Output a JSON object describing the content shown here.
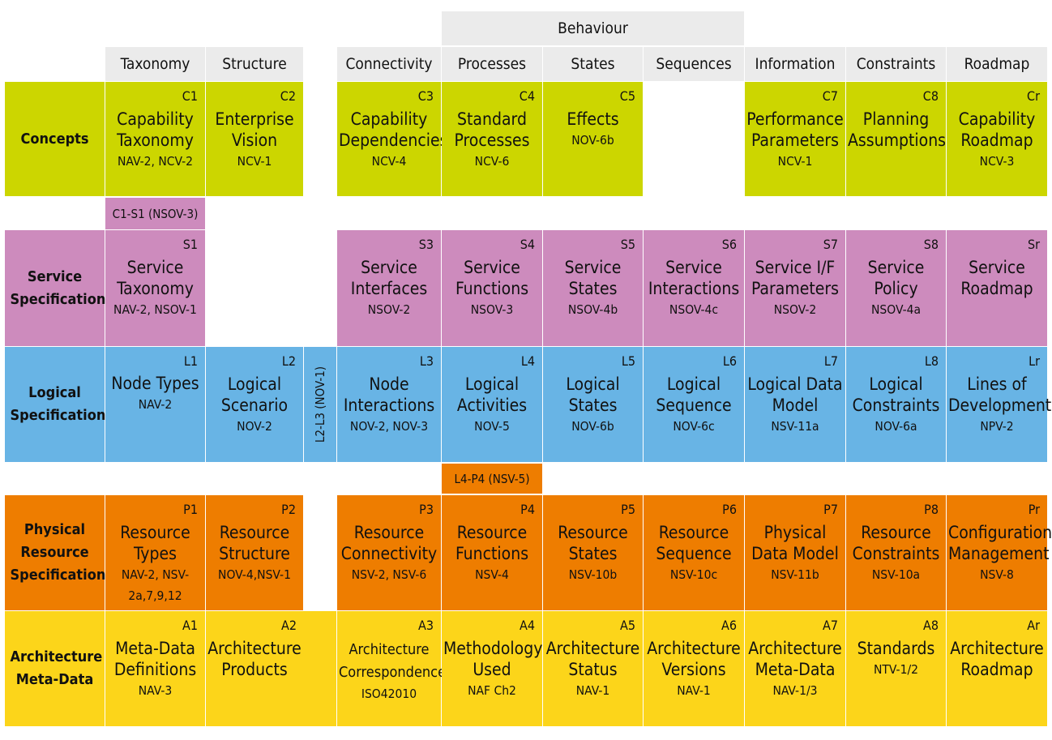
{
  "behaviour_label": "Behaviour",
  "columns": [
    "Taxonomy",
    "Structure",
    "Connectivity",
    "Processes",
    "States",
    "Sequences",
    "Information",
    "Constraints",
    "Roadmap"
  ],
  "rows": [
    {
      "label": "Concepts",
      "color": "#ccd600"
    },
    {
      "label": "Service Specifications",
      "color": "#cd8bbd"
    },
    {
      "label": "Logical Specifications",
      "color": "#68b4e5"
    },
    {
      "label": "Physical Resource Specifications",
      "color": "#ee7d00"
    },
    {
      "label": "Architecture Meta-Data",
      "color": "#fcd51a"
    }
  ],
  "links": {
    "c1_s1": "C1-S1 (NSOV-3)",
    "l2_l3": "L2-L3 (NOV-1)",
    "l4_p4": "L4-P4 (NSV-5)"
  },
  "concepts": {
    "c1": {
      "code": "C1",
      "name": "Capability Taxonomy",
      "ref": "NAV-2, NCV-2"
    },
    "c2": {
      "code": "C2",
      "name": "Enterprise Vision",
      "ref": "NCV-1"
    },
    "c3": {
      "code": "C3",
      "name": "Capability Dependencies",
      "ref": "NCV-4"
    },
    "c4": {
      "code": "C4",
      "name": "Standard Processes",
      "ref": "NCV-6"
    },
    "c5": {
      "code": "C5",
      "name": "Effects",
      "ref": "NOV-6b"
    },
    "c7": {
      "code": "C7",
      "name": "Performance Parameters",
      "ref": "NCV-1"
    },
    "c8": {
      "code": "C8",
      "name": "Planning Assumptions",
      "ref": ""
    },
    "cr": {
      "code": "Cr",
      "name": "Capability Roadmap",
      "ref": "NCV-3"
    }
  },
  "service": {
    "s1": {
      "code": "S1",
      "name": "Service Taxonomy",
      "ref": "NAV-2, NSOV-1"
    },
    "s3": {
      "code": "S3",
      "name": "Service Interfaces",
      "ref": "NSOV-2"
    },
    "s4": {
      "code": "S4",
      "name": "Service Functions",
      "ref": "NSOV-3"
    },
    "s5": {
      "code": "S5",
      "name": "Service States",
      "ref": "NSOV-4b"
    },
    "s6": {
      "code": "S6",
      "name": "Service Interactions",
      "ref": "NSOV-4c"
    },
    "s7": {
      "code": "S7",
      "name": "Service I/F Parameters",
      "ref": "NSOV-2"
    },
    "s8": {
      "code": "S8",
      "name": "Service Policy",
      "ref": "NSOV-4a"
    },
    "sr": {
      "code": "Sr",
      "name": "Service Roadmap",
      "ref": ""
    }
  },
  "logical": {
    "l1": {
      "code": "L1",
      "name": "Node Types",
      "ref": "NAV-2"
    },
    "l2": {
      "code": "L2",
      "name": "Logical Scenario",
      "ref": "NOV-2"
    },
    "l3": {
      "code": "L3",
      "name": "Node Interactions",
      "ref": "NOV-2, NOV-3"
    },
    "l4": {
      "code": "L4",
      "name": "Logical Activities",
      "ref": "NOV-5"
    },
    "l5": {
      "code": "L5",
      "name": "Logical States",
      "ref": "NOV-6b"
    },
    "l6": {
      "code": "L6",
      "name": "Logical Sequence",
      "ref": "NOV-6c"
    },
    "l7": {
      "code": "L7",
      "name": "Logical Data Model",
      "ref": "NSV-11a"
    },
    "l8": {
      "code": "L8",
      "name": "Logical Constraints",
      "ref": "NOV-6a"
    },
    "lr": {
      "code": "Lr",
      "name": "Lines of Development",
      "ref": "NPV-2"
    }
  },
  "physical": {
    "p1": {
      "code": "P1",
      "name": "Resource Types",
      "ref": "NAV-2, NSV-2a,7,9,12"
    },
    "p2": {
      "code": "P2",
      "name": "Resource Structure",
      "ref": "NOV-4,NSV-1"
    },
    "p3": {
      "code": "P3",
      "name": "Resource Connectivity",
      "ref": "NSV-2, NSV-6"
    },
    "p4": {
      "code": "P4",
      "name": "Resource Functions",
      "ref": "NSV-4"
    },
    "p5": {
      "code": "P5",
      "name": "Resource States",
      "ref": "NSV-10b"
    },
    "p6": {
      "code": "P6",
      "name": "Resource Sequence",
      "ref": "NSV-10c"
    },
    "p7": {
      "code": "P7",
      "name": "Physical Data Model",
      "ref": "NSV-11b"
    },
    "p8": {
      "code": "P8",
      "name": "Resource Constraints",
      "ref": "NSV-10a"
    },
    "pr": {
      "code": "Pr",
      "name": "Configuration Management",
      "ref": "NSV-8"
    }
  },
  "meta": {
    "a1": {
      "code": "A1",
      "name": "Meta-Data Definitions",
      "ref": "NAV-3"
    },
    "a2": {
      "code": "A2",
      "name": "Architecture Products",
      "ref": ""
    },
    "a3": {
      "code": "A3",
      "name": "Architecture Correspondence",
      "ref": "ISO42010"
    },
    "a4": {
      "code": "A4",
      "name": "Methodology Used",
      "ref": "NAF Ch2"
    },
    "a5": {
      "code": "A5",
      "name": "Architecture Status",
      "ref": "NAV-1"
    },
    "a6": {
      "code": "A6",
      "name": "Architecture Versions",
      "ref": "NAV-1"
    },
    "a7": {
      "code": "A7",
      "name": "Architecture Meta-Data",
      "ref": "NAV-1/3"
    },
    "a8": {
      "code": "A8",
      "name": "Standards",
      "ref": "NTV-1/2"
    },
    "ar": {
      "code": "Ar",
      "name": "Architecture Roadmap",
      "ref": ""
    }
  }
}
